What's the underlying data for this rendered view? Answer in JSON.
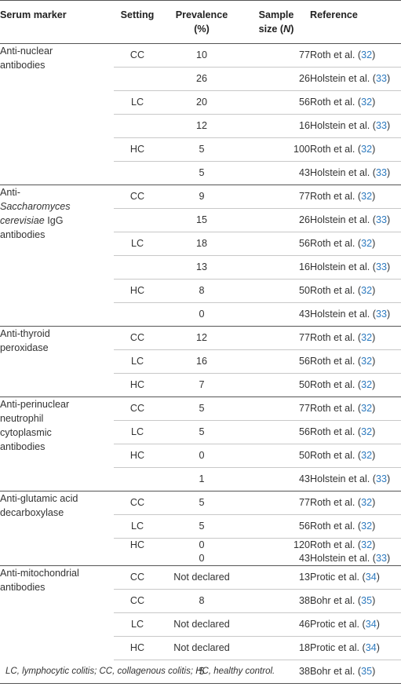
{
  "columns": {
    "marker": "Serum marker",
    "setting": "Setting",
    "prevalence_line1": "Prevalence",
    "prevalence_line2": "(%)",
    "sample_line1": "Sample",
    "sample_line2_prefix": "size (",
    "sample_line2_italic": "N",
    "sample_line2_suffix": ")",
    "reference": "Reference"
  },
  "groups": [
    {
      "marker_lines": [
        "Anti-nuclear",
        "antibodies"
      ],
      "rows": [
        {
          "setting": "CC",
          "prevalence": "10",
          "size": "77",
          "ref_author": "Roth et al. (",
          "ref_num": "32",
          "ref_close": ")"
        },
        {
          "setting": "",
          "prevalence": "26",
          "size": "26",
          "ref_author": "Holstein et al. (",
          "ref_num": "33",
          "ref_close": ")"
        },
        {
          "setting": "LC",
          "prevalence": "20",
          "size": "56",
          "ref_author": "Roth et al. (",
          "ref_num": "32",
          "ref_close": ")"
        },
        {
          "setting": "",
          "prevalence": "12",
          "size": "16",
          "ref_author": "Holstein et al. (",
          "ref_num": "33",
          "ref_close": ")"
        },
        {
          "setting": "HC",
          "prevalence": "5",
          "size": "100",
          "ref_author": "Roth et al. (",
          "ref_num": "32",
          "ref_close": ")"
        },
        {
          "setting": "",
          "prevalence": "5",
          "size": "43",
          "ref_author": "Holstein et al. (",
          "ref_num": "33",
          "ref_close": ")"
        }
      ]
    },
    {
      "marker_lines": [
        "Anti-",
        "Saccharomyces cerevisiae IgG",
        "antibodies"
      ],
      "rows": [
        {
          "setting": "CC",
          "prevalence": "9",
          "size": "77",
          "ref_author": "Roth et al. (",
          "ref_num": "32",
          "ref_close": ")"
        },
        {
          "setting": "",
          "prevalence": "15",
          "size": "26",
          "ref_author": "Holstein et al. (",
          "ref_num": "33",
          "ref_close": ")"
        },
        {
          "setting": "LC",
          "prevalence": "18",
          "size": "56",
          "ref_author": "Roth et al. (",
          "ref_num": "32",
          "ref_close": ")"
        },
        {
          "setting": "",
          "prevalence": "13",
          "size": "16",
          "ref_author": "Holstein et al. (",
          "ref_num": "33",
          "ref_close": ")"
        },
        {
          "setting": "HC",
          "prevalence": "8",
          "size": "50",
          "ref_author": "Roth et al. (",
          "ref_num": "32",
          "ref_close": ")"
        },
        {
          "setting": "",
          "prevalence": "0",
          "size": "43",
          "ref_author": "Holstein et al. (",
          "ref_num": "33",
          "ref_close": ")"
        }
      ]
    },
    {
      "marker_lines": [
        "Anti-thyroid",
        "peroxidase"
      ],
      "rows": [
        {
          "setting": "CC",
          "prevalence": "12",
          "size": "77",
          "ref_author": "Roth et al. (",
          "ref_num": "32",
          "ref_close": ")"
        },
        {
          "setting": "LC",
          "prevalence": "16",
          "size": "56",
          "ref_author": "Roth et al. (",
          "ref_num": "32",
          "ref_close": ")"
        },
        {
          "setting": "HC",
          "prevalence": "7",
          "size": "50",
          "ref_author": "Roth et al. (",
          "ref_num": "32",
          "ref_close": ")"
        }
      ]
    },
    {
      "marker_lines": [
        "Anti-perinuclear",
        "neutrophil",
        "cytoplasmic",
        "antibodies"
      ],
      "rows": [
        {
          "setting": "CC",
          "prevalence": "5",
          "size": "77",
          "ref_author": "Roth et al. (",
          "ref_num": "32",
          "ref_close": ")"
        },
        {
          "setting": "LC",
          "prevalence": "5",
          "size": "56",
          "ref_author": "Roth et al. (",
          "ref_num": "32",
          "ref_close": ")"
        },
        {
          "setting": "HC",
          "prevalence": "0",
          "size": "50",
          "ref_author": "Roth et al. (",
          "ref_num": "32",
          "ref_close": ")"
        },
        {
          "setting": "",
          "prevalence": "1",
          "size": "43",
          "ref_author": "Holstein et al. (",
          "ref_num": "33",
          "ref_close": ")"
        }
      ]
    },
    {
      "marker_lines": [
        "Anti-glutamic acid",
        "decarboxylase"
      ],
      "rows": [
        {
          "setting": "CC",
          "prevalence": "5",
          "size": "77",
          "ref_author": "Roth et al. (",
          "ref_num": "32",
          "ref_close": ")"
        },
        {
          "setting": "LC",
          "prevalence": "5",
          "size": "56",
          "ref_author": "Roth et al. (",
          "ref_num": "32",
          "ref_close": ")"
        },
        {
          "setting": "HC",
          "prevalence": "0",
          "size": "120",
          "ref_author": "Roth et al. (",
          "ref_num": "32",
          "ref_close": ")",
          "tight": true
        },
        {
          "setting": "",
          "prevalence": "0",
          "size": "43",
          "ref_author": "Holstein et al. (",
          "ref_num": "33",
          "ref_close": ")",
          "tight": true
        }
      ]
    },
    {
      "marker_lines": [
        "Anti-mitochondrial",
        "antibodies"
      ],
      "rows": [
        {
          "setting": "CC",
          "prevalence": "Not declared",
          "size": "13",
          "ref_author": "Protic et al. (",
          "ref_num": "34",
          "ref_close": ")"
        },
        {
          "setting": "CC",
          "prevalence": "8",
          "size": "38",
          "ref_author": "Bohr et al. (",
          "ref_num": "35",
          "ref_close": ")"
        },
        {
          "setting": "LC",
          "prevalence": "Not declared",
          "size": "46",
          "ref_author": "Protic et al. (",
          "ref_num": "34",
          "ref_close": ")"
        },
        {
          "setting": "HC",
          "prevalence": "Not declared",
          "size": "18",
          "ref_author": "Protic et al. (",
          "ref_num": "34",
          "ref_close": ")"
        },
        {
          "setting": "",
          "prevalence": "5",
          "size": "38",
          "ref_author": "Bohr et al. (",
          "ref_num": "35",
          "ref_close": ")"
        }
      ]
    }
  ],
  "footnote": "LC, lymphocytic colitis; CC, collagenous colitis; HC, healthy control."
}
